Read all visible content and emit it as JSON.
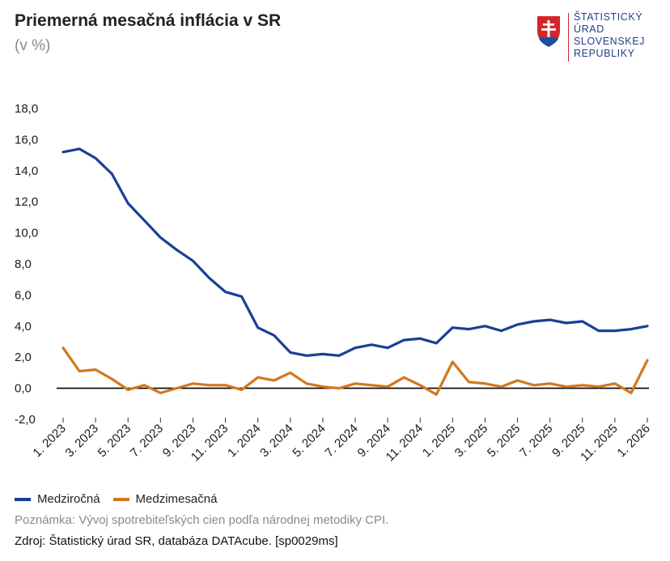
{
  "header": {
    "title": "Priemerná mesačná inflácia v SR",
    "subtitle": "(v %)"
  },
  "logo": {
    "lines": [
      "ŠTATISTICKÝ",
      "ÚRAD",
      "SLOVENSKEJ",
      "REPUBLIKY"
    ],
    "icon": "slovak-coat-of-arms-icon"
  },
  "note": "Poznámka: Vývoj spotrebiteľských cien podľa národnej metodiky CPI.",
  "source": "Zdroj: Štatistický úrad SR, databáza DATAcube. [sp0029ms]",
  "colors": {
    "yoy": "#1b3f96",
    "mom": "#d2781e",
    "zero_line": "#000000",
    "grid": "#e0e0e0"
  },
  "chart_data": {
    "type": "line",
    "title": "Priemerná mesačná inflácia v SR",
    "subtitle": "(v %)",
    "ylim": [
      -2,
      18
    ],
    "y_ticks": [
      "-2,0",
      "0,0",
      "2,0",
      "4,0",
      "6,0",
      "8,0",
      "10,0",
      "12,0",
      "14,0",
      "16,0",
      "18,0"
    ],
    "x_tick_labels": [
      "1. 2023",
      "3. 2023",
      "5. 2023",
      "7. 2023",
      "9. 2023",
      "11. 2023",
      "1. 2024",
      "3. 2024",
      "5. 2024",
      "7. 2024",
      "9. 2024",
      "11. 2024",
      "1. 2025",
      "3. 2025",
      "5. 2025",
      "7. 2025",
      "9. 2025",
      "11. 2025",
      "1. 2026"
    ],
    "x": [
      "1. 2023",
      "2. 2023",
      "3. 2023",
      "4. 2023",
      "5. 2023",
      "6. 2023",
      "7. 2023",
      "8. 2023",
      "9. 2023",
      "10. 2023",
      "11. 2023",
      "12. 2023",
      "1. 2024",
      "2. 2024",
      "3. 2024",
      "4. 2024",
      "5. 2024",
      "6. 2024",
      "7. 2024",
      "8. 2024",
      "9. 2024",
      "10. 2024",
      "11. 2024",
      "12. 2024",
      "1. 2025",
      "2. 2025",
      "3. 2025",
      "4. 2025",
      "5. 2025",
      "6. 2025",
      "7. 2025",
      "8. 2025",
      "9. 2025",
      "10. 2025",
      "11. 2025",
      "12. 2025",
      "1. 2026"
    ],
    "series": [
      {
        "name": "Medziročná",
        "values": [
          15.2,
          15.4,
          14.8,
          13.8,
          11.9,
          10.8,
          9.7,
          8.9,
          8.2,
          7.1,
          6.2,
          5.9,
          3.9,
          3.4,
          2.3,
          2.1,
          2.2,
          2.1,
          2.6,
          2.8,
          2.6,
          3.1,
          3.2,
          2.9,
          3.9,
          3.8,
          4.0,
          3.7,
          4.1,
          4.3,
          4.4,
          4.2,
          4.3,
          3.7,
          3.7,
          3.8,
          4.0
        ]
      },
      {
        "name": "Medzimesačná",
        "values": [
          2.6,
          1.1,
          1.2,
          0.6,
          -0.1,
          0.2,
          -0.3,
          0.0,
          0.3,
          0.2,
          0.2,
          -0.1,
          0.7,
          0.5,
          1.0,
          0.3,
          0.1,
          0.0,
          0.3,
          0.2,
          0.1,
          0.7,
          0.2,
          -0.4,
          1.7,
          0.4,
          0.3,
          0.1,
          0.5,
          0.2,
          0.3,
          0.1,
          0.2,
          0.1,
          0.3,
          -0.3,
          1.8
        ]
      }
    ],
    "legend_position": "bottom-left",
    "grid": false
  }
}
